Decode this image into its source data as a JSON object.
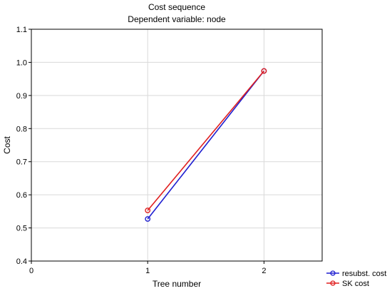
{
  "chart_data": {
    "type": "line",
    "title": "Cost sequence",
    "subtitle": "Dependent variable: node",
    "xlabel": "Tree number",
    "ylabel": "Cost",
    "xlim": [
      0,
      2.5
    ],
    "ylim": [
      0.4,
      1.1
    ],
    "xticks": [
      0,
      1,
      2
    ],
    "xtick_labels": [
      "0",
      "1",
      "2"
    ],
    "yticks": [
      0.4,
      0.5,
      0.6,
      0.7,
      0.8,
      0.9,
      1.0,
      1.1
    ],
    "ytick_labels": [
      "0.4",
      "0.5",
      "0.6",
      "0.7",
      "0.8",
      "0.9",
      "1.0",
      "1.1"
    ],
    "grid": true,
    "legend_position": "bottom-right",
    "series": [
      {
        "name": "resubst. cost",
        "color": "#1f1fd0",
        "marker": "circle",
        "x": [
          1,
          2
        ],
        "y": [
          0.527,
          0.974
        ]
      },
      {
        "name": "SK cost",
        "color": "#e02020",
        "marker": "circle",
        "x": [
          1,
          2
        ],
        "y": [
          0.553,
          0.974
        ]
      }
    ]
  }
}
